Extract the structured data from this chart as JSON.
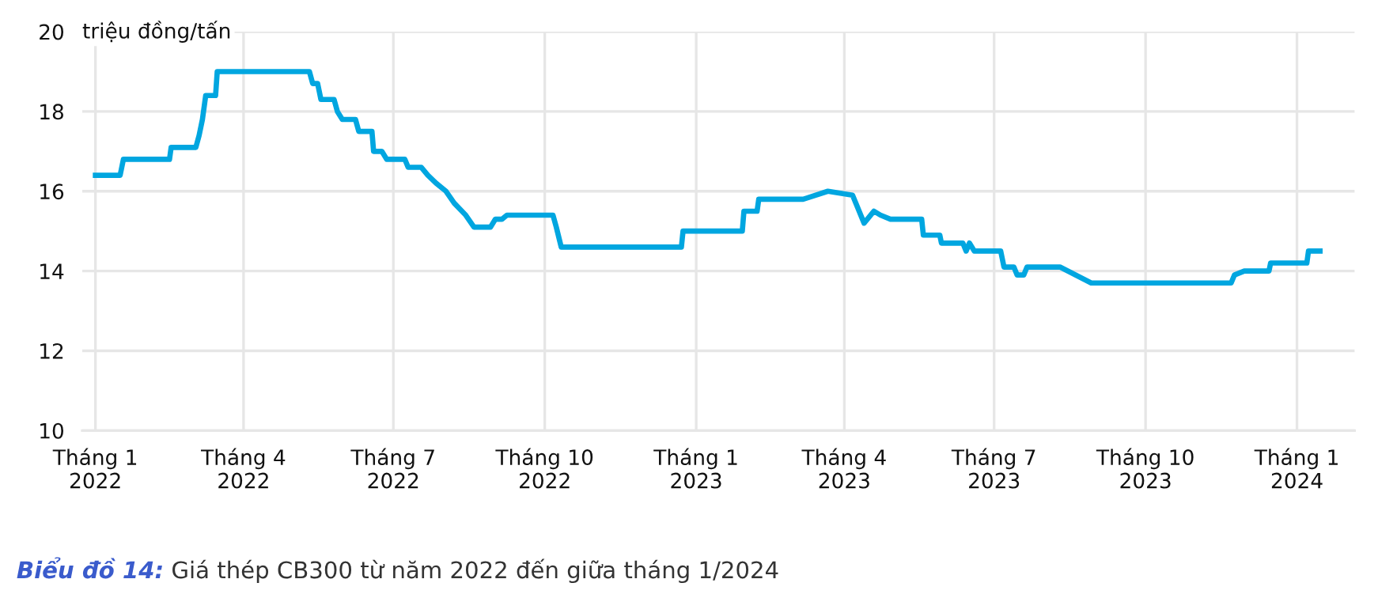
{
  "chart_data": {
    "type": "line",
    "ylabel": "triệu đồng/tấn",
    "annotations": [
      "Biểu đồ 14:",
      "Giá thép CB300 từ năm 2022 đến giữa tháng 1/2024"
    ],
    "x": [
      "2022-01-01",
      "2022-01-16",
      "2022-01-18",
      "2022-02-15",
      "2022-02-16",
      "2022-03-03",
      "2022-03-05",
      "2022-03-07",
      "2022-03-09",
      "2022-03-15",
      "2022-03-16",
      "2022-05-11",
      "2022-05-13",
      "2022-05-16",
      "2022-05-18",
      "2022-05-26",
      "2022-05-28",
      "2022-05-31",
      "2022-06-08",
      "2022-06-10",
      "2022-06-18",
      "2022-06-19",
      "2022-06-24",
      "2022-06-27",
      "2022-07-08",
      "2022-07-10",
      "2022-07-18",
      "2022-07-22",
      "2022-07-27",
      "2022-08-02",
      "2022-08-07",
      "2022-08-14",
      "2022-08-19",
      "2022-08-29",
      "2022-09-01",
      "2022-09-05",
      "2022-09-08",
      "2022-10-06",
      "2022-10-08",
      "2022-10-11",
      "2022-12-23",
      "2022-12-24",
      "2023-01-29",
      "2023-01-30",
      "2023-02-07",
      "2023-02-08",
      "2023-03-07",
      "2023-03-22",
      "2023-04-06",
      "2023-04-13",
      "2023-04-19",
      "2023-04-23",
      "2023-04-29",
      "2023-05-18",
      "2023-05-19",
      "2023-05-29",
      "2023-05-30",
      "2023-06-12",
      "2023-06-14",
      "2023-06-16",
      "2023-06-19",
      "2023-07-05",
      "2023-07-07",
      "2023-07-13",
      "2023-07-15",
      "2023-07-19",
      "2023-07-21",
      "2023-08-10",
      "2023-08-29",
      "2023-11-22",
      "2023-11-24",
      "2023-11-30",
      "2023-12-15",
      "2023-12-16",
      "2024-01-07",
      "2024-01-08",
      "2024-01-15"
    ],
    "series": [
      {
        "color": "#00a6e0",
        "values": [
          16.4,
          16.4,
          16.8,
          16.8,
          17.1,
          17.1,
          17.4,
          17.8,
          18.4,
          18.4,
          19.0,
          19.0,
          18.7,
          18.7,
          18.3,
          18.3,
          18.0,
          17.8,
          17.8,
          17.5,
          17.5,
          17.0,
          17.0,
          16.8,
          16.8,
          16.6,
          16.6,
          16.4,
          16.2,
          16.0,
          15.7,
          15.4,
          15.1,
          15.1,
          15.3,
          15.3,
          15.4,
          15.4,
          15.1,
          14.6,
          14.6,
          15.0,
          15.0,
          15.5,
          15.5,
          15.8,
          15.8,
          16.0,
          15.9,
          15.2,
          15.5,
          15.4,
          15.3,
          15.3,
          14.9,
          14.9,
          14.7,
          14.7,
          14.5,
          14.7,
          14.5,
          14.5,
          14.1,
          14.1,
          13.9,
          13.9,
          14.1,
          14.1,
          13.7,
          13.7,
          13.9,
          14.0,
          14.0,
          14.2,
          14.2,
          14.5,
          14.5
        ]
      }
    ],
    "xlim": [
      "2021-12-24",
      "2024-02-05"
    ],
    "xticks": [
      {
        "value": "2022-01-01",
        "label": "Tháng 1\n2022"
      },
      {
        "value": "2022-04-01",
        "label": "Tháng 4\n2022"
      },
      {
        "value": "2022-07-01",
        "label": "Tháng 7\n2022"
      },
      {
        "value": "2022-10-01",
        "label": "Tháng 10\n2022"
      },
      {
        "value": "2023-01-01",
        "label": "Tháng 1\n2023"
      },
      {
        "value": "2023-04-01",
        "label": "Tháng 4\n2023"
      },
      {
        "value": "2023-07-01",
        "label": "Tháng 7\n2023"
      },
      {
        "value": "2023-10-01",
        "label": "Tháng 10\n2023"
      },
      {
        "value": "2024-01-01",
        "label": "Tháng 1\n2024"
      }
    ],
    "ylim": [
      10,
      20
    ],
    "yticks": [
      10,
      12,
      14,
      16,
      18,
      20
    ],
    "grid": true,
    "legend": false,
    "marker": "none",
    "line_style": "solid"
  }
}
